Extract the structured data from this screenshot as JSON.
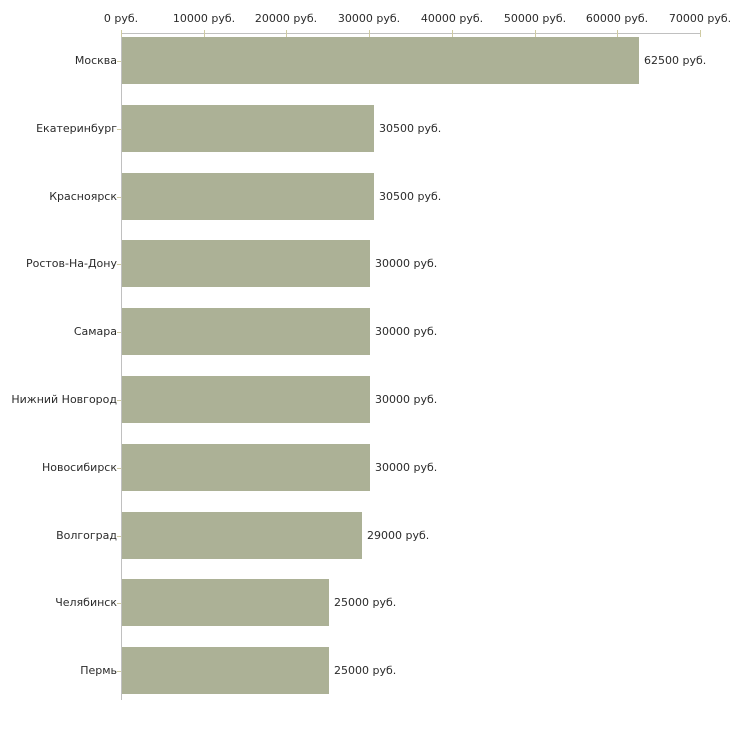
{
  "page": {
    "background": "#ffffff"
  },
  "chart_data": {
    "type": "bar",
    "orientation": "horizontal",
    "title": "",
    "categories": [
      "Москва",
      "Екатеринбург",
      "Красноярск",
      "Ростов-На-Дону",
      "Самара",
      "Нижний Новгород",
      "Новосибирск",
      "Волгоград",
      "Челябинск",
      "Пермь"
    ],
    "values": [
      62500,
      30500,
      30500,
      30000,
      30000,
      30000,
      30000,
      29000,
      25000,
      25000
    ],
    "value_labels": [
      "62500 руб.",
      "30500 руб.",
      "30500 руб.",
      "30000 руб.",
      "30000 руб.",
      "30000 руб.",
      "30000 руб.",
      "29000 руб.",
      "25000 руб.",
      "25000 руб."
    ],
    "x_axis": {
      "position": "top",
      "min": 0,
      "max": 70000,
      "tick_step": 10000,
      "tick_values": [
        0,
        10000,
        20000,
        30000,
        40000,
        50000,
        60000,
        70000
      ],
      "tick_labels": [
        "0 руб.",
        "10000 руб.",
        "20000 руб.",
        "30000 руб.",
        "40000 руб.",
        "50000 руб.",
        "60000 руб.",
        "70000 руб."
      ]
    },
    "grid": false,
    "legend": false,
    "colors": {
      "bar": "#acb196",
      "axis_line": "#c0c0c0",
      "tick": "#cfcba2",
      "text": "#2b2b2b"
    }
  }
}
